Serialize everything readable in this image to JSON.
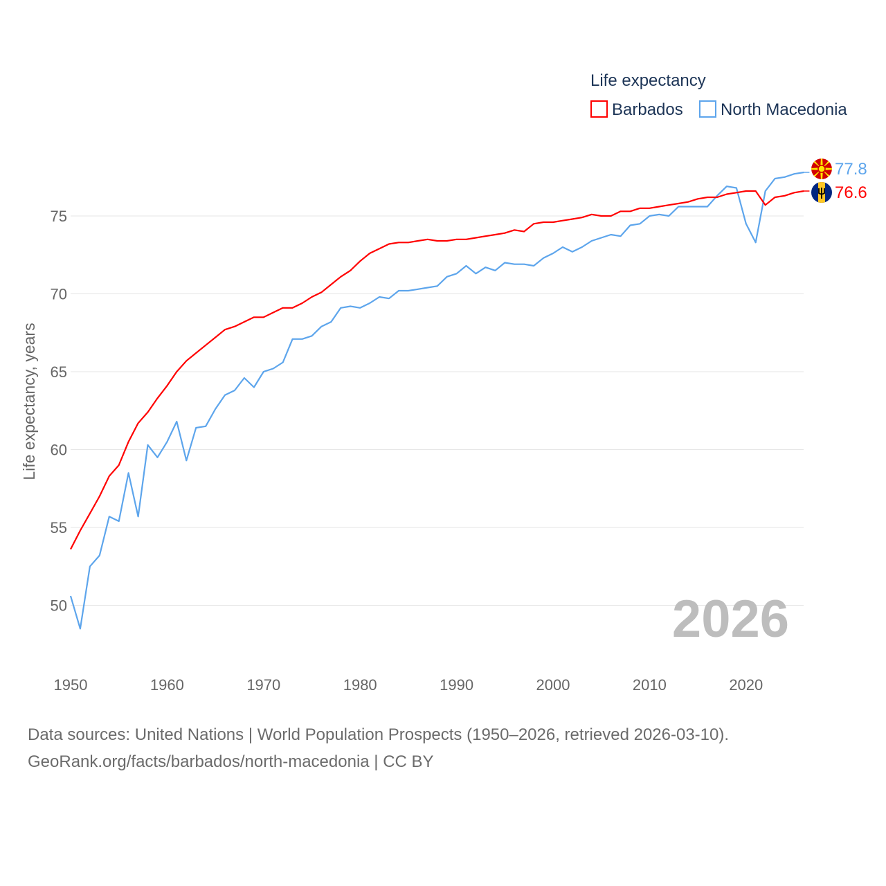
{
  "chart_data": {
    "type": "line",
    "title": "Life expectancy",
    "xlabel": "",
    "ylabel": "Life expectancy, years",
    "xlim": [
      1950,
      2026
    ],
    "ylim": [
      47.5,
      79
    ],
    "x_ticks": [
      "1950",
      "1960",
      "1970",
      "1980",
      "1990",
      "2000",
      "2010",
      "2020"
    ],
    "y_ticks": [
      "50",
      "55",
      "60",
      "65",
      "70",
      "75"
    ],
    "grid": "horizontal",
    "legend_position": "top-right",
    "year_label": "2026",
    "x": [
      1950,
      1951,
      1952,
      1953,
      1954,
      1955,
      1956,
      1957,
      1958,
      1959,
      1960,
      1961,
      1962,
      1963,
      1964,
      1965,
      1966,
      1967,
      1968,
      1969,
      1970,
      1971,
      1972,
      1973,
      1974,
      1975,
      1976,
      1977,
      1978,
      1979,
      1980,
      1981,
      1982,
      1983,
      1984,
      1985,
      1986,
      1987,
      1988,
      1989,
      1990,
      1991,
      1992,
      1993,
      1994,
      1995,
      1996,
      1997,
      1998,
      1999,
      2000,
      2001,
      2002,
      2003,
      2004,
      2005,
      2006,
      2007,
      2008,
      2009,
      2010,
      2011,
      2012,
      2013,
      2014,
      2015,
      2016,
      2017,
      2018,
      2019,
      2020,
      2021,
      2022,
      2023,
      2024,
      2025,
      2026
    ],
    "series": [
      {
        "name": "Barbados",
        "color": "#ff0000",
        "end_label": "76.6",
        "values": [
          53.6,
          54.8,
          55.9,
          57.0,
          58.3,
          59.0,
          60.5,
          61.7,
          62.4,
          63.3,
          64.1,
          65.0,
          65.7,
          66.2,
          66.7,
          67.2,
          67.7,
          67.9,
          68.2,
          68.5,
          68.5,
          68.8,
          69.1,
          69.1,
          69.4,
          69.8,
          70.1,
          70.6,
          71.1,
          71.5,
          72.1,
          72.6,
          72.9,
          73.2,
          73.3,
          73.3,
          73.4,
          73.5,
          73.4,
          73.4,
          73.5,
          73.5,
          73.6,
          73.7,
          73.8,
          73.9,
          74.1,
          74.0,
          74.5,
          74.6,
          74.6,
          74.7,
          74.8,
          74.9,
          75.1,
          75.0,
          75.0,
          75.3,
          75.3,
          75.5,
          75.5,
          75.6,
          75.7,
          75.8,
          75.9,
          76.1,
          76.2,
          76.2,
          76.4,
          76.5,
          76.6,
          76.6,
          75.7,
          76.2,
          76.3,
          76.5,
          76.6
        ]
      },
      {
        "name": "North Macedonia",
        "color": "#5da5ec",
        "end_label": "77.8",
        "values": [
          50.6,
          48.5,
          52.5,
          53.2,
          55.7,
          55.4,
          58.5,
          55.7,
          60.3,
          59.5,
          60.5,
          61.8,
          59.3,
          61.4,
          61.5,
          62.6,
          63.5,
          63.8,
          64.6,
          64.0,
          65.0,
          65.2,
          65.6,
          67.1,
          67.1,
          67.3,
          67.9,
          68.2,
          69.1,
          69.2,
          69.1,
          69.4,
          69.8,
          69.7,
          70.2,
          70.2,
          70.3,
          70.4,
          70.5,
          71.1,
          71.3,
          71.8,
          71.3,
          71.7,
          71.5,
          72.0,
          71.9,
          71.9,
          71.8,
          72.3,
          72.6,
          73.0,
          72.7,
          73.0,
          73.4,
          73.6,
          73.8,
          73.7,
          74.4,
          74.5,
          75.0,
          75.1,
          75.0,
          75.6,
          75.6,
          75.6,
          75.6,
          76.3,
          76.9,
          76.8,
          74.5,
          73.3,
          76.6,
          77.4,
          77.5,
          77.7,
          77.8
        ]
      }
    ]
  },
  "source": {
    "line1": "Data sources: United Nations | World Population Prospects (1950–2026, retrieved 2026-03-10).",
    "line2": "GeoRank.org/facts/barbados/north-macedonia | CC BY"
  },
  "icons": {
    "barbados": "barbados-flag-icon",
    "north_macedonia": "north-macedonia-flag-icon"
  }
}
